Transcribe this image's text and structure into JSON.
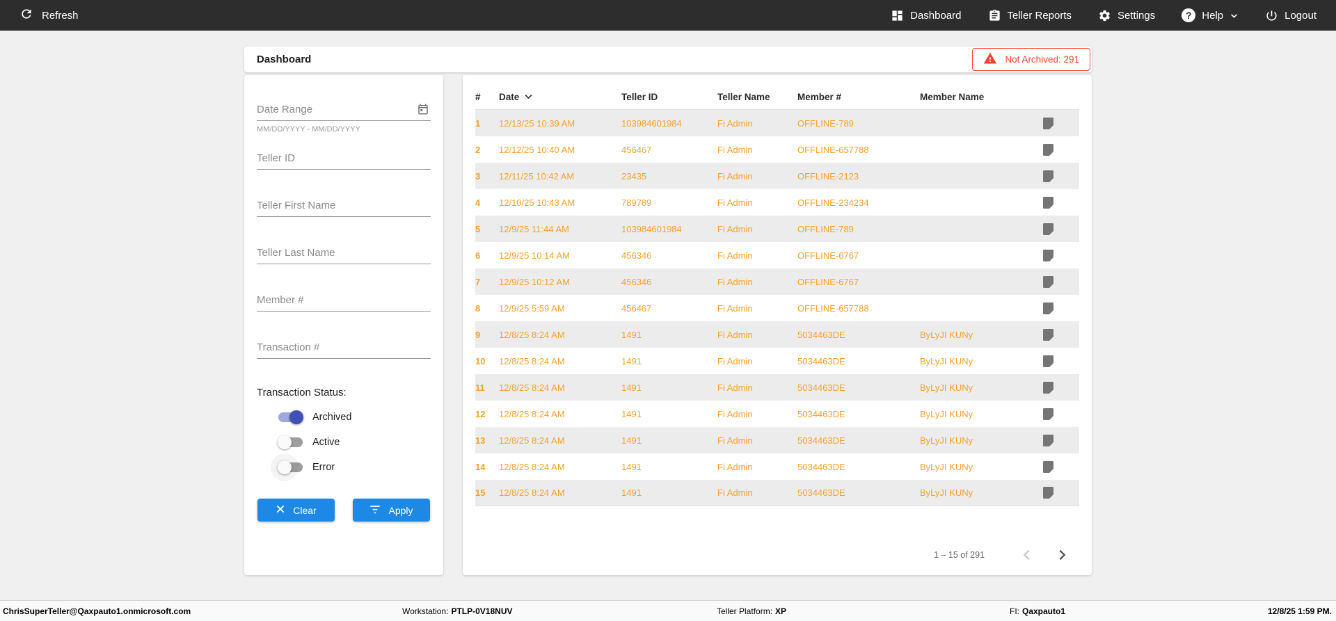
{
  "nav": {
    "refresh_label": "Refresh",
    "dashboard_label": "Dashboard",
    "teller_reports_label": "Teller Reports",
    "settings_label": "Settings",
    "help_label": "Help",
    "logout_label": "Logout"
  },
  "header": {
    "title": "Dashboard",
    "not_archived_badge": "Not Archived: 291"
  },
  "filters": {
    "date_range_label": "Date Range",
    "date_range_hint": "MM/DD/YYYY - MM/DD/YYYY",
    "teller_id_label": "Teller ID",
    "teller_first_name_label": "Teller First Name",
    "teller_last_name_label": "Teller Last Name",
    "member_number_label": "Member #",
    "transaction_number_label": "Transaction #",
    "status_label": "Transaction Status:",
    "toggles": [
      {
        "label": "Archived",
        "on": true
      },
      {
        "label": "Active",
        "on": false
      },
      {
        "label": "Error",
        "on": false
      }
    ],
    "clear_label": "Clear",
    "apply_label": "Apply"
  },
  "table": {
    "columns": [
      "#",
      "Date",
      "Teller ID",
      "Teller Name",
      "Member #",
      "Member Name"
    ],
    "sorted_column": "Date",
    "rows": [
      {
        "num": "1",
        "date": "12/13/25 10:39 AM",
        "teller_id": "103984601984",
        "teller_name": "Fi Admin",
        "member_number": "OFFLINE-789",
        "member_name": ""
      },
      {
        "num": "2",
        "date": "12/12/25 10:40 AM",
        "teller_id": "456467",
        "teller_name": "Fi Admin",
        "member_number": "OFFLINE-657788",
        "member_name": ""
      },
      {
        "num": "3",
        "date": "12/11/25 10:42 AM",
        "teller_id": "23435",
        "teller_name": "Fi Admin",
        "member_number": "OFFLINE-2123",
        "member_name": ""
      },
      {
        "num": "4",
        "date": "12/10/25 10:43 AM",
        "teller_id": "789789",
        "teller_name": "Fi Admin",
        "member_number": "OFFLINE-234234",
        "member_name": ""
      },
      {
        "num": "5",
        "date": "12/9/25 11:44 AM",
        "teller_id": "103984601984",
        "teller_name": "Fi Admin",
        "member_number": "OFFLINE-789",
        "member_name": ""
      },
      {
        "num": "6",
        "date": "12/9/25 10:14 AM",
        "teller_id": "456346",
        "teller_name": "Fi Admin",
        "member_number": "OFFLINE-6767",
        "member_name": ""
      },
      {
        "num": "7",
        "date": "12/9/25 10:12 AM",
        "teller_id": "456346",
        "teller_name": "Fi Admin",
        "member_number": "OFFLINE-6767",
        "member_name": ""
      },
      {
        "num": "8",
        "date": "12/9/25 5:59 AM",
        "teller_id": "456467",
        "teller_name": "Fi Admin",
        "member_number": "OFFLINE-657788",
        "member_name": ""
      },
      {
        "num": "9",
        "date": "12/8/25 8:24 AM",
        "teller_id": "1491",
        "teller_name": "Fi Admin",
        "member_number": "5034463DE",
        "member_name": "ByLyJI KUNy"
      },
      {
        "num": "10",
        "date": "12/8/25 8:24 AM",
        "teller_id": "1491",
        "teller_name": "Fi Admin",
        "member_number": "5034463DE",
        "member_name": "ByLyJI KUNy"
      },
      {
        "num": "11",
        "date": "12/8/25 8:24 AM",
        "teller_id": "1491",
        "teller_name": "Fi Admin",
        "member_number": "5034463DE",
        "member_name": "ByLyJI KUNy"
      },
      {
        "num": "12",
        "date": "12/8/25 8:24 AM",
        "teller_id": "1491",
        "teller_name": "Fi Admin",
        "member_number": "5034463DE",
        "member_name": "ByLyJI KUNy"
      },
      {
        "num": "13",
        "date": "12/8/25 8:24 AM",
        "teller_id": "1491",
        "teller_name": "Fi Admin",
        "member_number": "5034463DE",
        "member_name": "ByLyJI KUNy"
      },
      {
        "num": "14",
        "date": "12/8/25 8:24 AM",
        "teller_id": "1491",
        "teller_name": "Fi Admin",
        "member_number": "5034463DE",
        "member_name": "ByLyJI KUNy"
      },
      {
        "num": "15",
        "date": "12/8/25 8:24 AM",
        "teller_id": "1491",
        "teller_name": "Fi Admin",
        "member_number": "5034463DE",
        "member_name": "ByLyJI KUNy"
      }
    ],
    "pagination_range": "1 – 15 of 291"
  },
  "footer": {
    "user_email": "ChrisSuperTeller@Qaxpauto1.onmicrosoft.com",
    "workstation_label": "Workstation:",
    "workstation_value": "PTLP-0V18NUV",
    "platform_label": "Teller Platform:",
    "platform_value": "XP",
    "fi_label": "FI:",
    "fi_value": "Qaxpauto1",
    "timestamp": "12/8/25 1:59 PM."
  },
  "colors": {
    "accent_orange": "#F5A12D",
    "primary_blue": "#1E88E5",
    "alert_red": "#F44336",
    "toggle_on": "#3F51B5",
    "nav_background": "#2D2D2D"
  }
}
